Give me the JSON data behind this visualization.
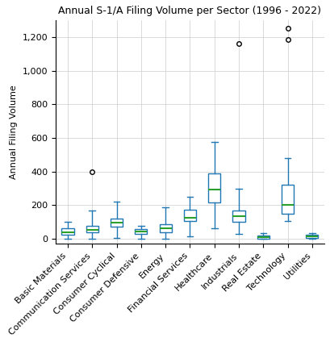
{
  "title": "Annual S-1/A Filing Volume per Sector (1996 - 2022)",
  "ylabel": "Annual Filing Volume",
  "sectors": [
    "Basic Materials",
    "Communication Services",
    "Consumer Cyclical",
    "Consumer Defensive",
    "Energy",
    "Financial Services",
    "Healthcare",
    "Industrials",
    "Real Estate",
    "Technology",
    "Utilities"
  ],
  "box_data": [
    {
      "label": "Basic Materials",
      "whislo": 0,
      "q1": 22,
      "med": 40,
      "q3": 62,
      "whishi": 100,
      "fliers": []
    },
    {
      "label": "Communication Services",
      "whislo": 0,
      "q1": 38,
      "med": 52,
      "q3": 75,
      "whishi": 170,
      "fliers": [
        400
      ]
    },
    {
      "label": "Consumer Cyclical",
      "whislo": 5,
      "q1": 72,
      "med": 95,
      "q3": 118,
      "whishi": 220,
      "fliers": []
    },
    {
      "label": "Consumer Defensive",
      "whislo": 0,
      "q1": 28,
      "med": 42,
      "q3": 58,
      "whishi": 75,
      "fliers": []
    },
    {
      "label": "Energy",
      "whislo": 0,
      "q1": 40,
      "med": 62,
      "q3": 85,
      "whishi": 185,
      "fliers": []
    },
    {
      "label": "Financial Services",
      "whislo": 12,
      "q1": 105,
      "med": 125,
      "q3": 175,
      "whishi": 250,
      "fliers": []
    },
    {
      "label": "Healthcare",
      "whislo": 60,
      "q1": 215,
      "med": 295,
      "q3": 390,
      "whishi": 575,
      "fliers": []
    },
    {
      "label": "Industrials",
      "whislo": 30,
      "q1": 100,
      "med": 135,
      "q3": 170,
      "whishi": 300,
      "fliers": [
        1160
      ]
    },
    {
      "label": "Real Estate",
      "whislo": 0,
      "q1": 2,
      "med": 8,
      "q3": 18,
      "whishi": 32,
      "fliers": []
    },
    {
      "label": "Technology",
      "whislo": 105,
      "q1": 150,
      "med": 200,
      "q3": 320,
      "whishi": 480,
      "fliers": [
        1185,
        1255
      ]
    },
    {
      "label": "Utilities",
      "whislo": 0,
      "q1": 5,
      "med": 12,
      "q3": 22,
      "whishi": 35,
      "fliers": []
    }
  ],
  "box_color": "#1f77b4",
  "median_color": "#2ca02c",
  "flier_color": "black",
  "background_color": "#ffffff",
  "grid_color": "#cccccc",
  "ylim": [
    -30,
    1300
  ],
  "yticks": [
    0,
    200,
    400,
    600,
    800,
    1000,
    1200
  ],
  "title_fontsize": 9,
  "label_fontsize": 8,
  "tick_fontsize": 8
}
